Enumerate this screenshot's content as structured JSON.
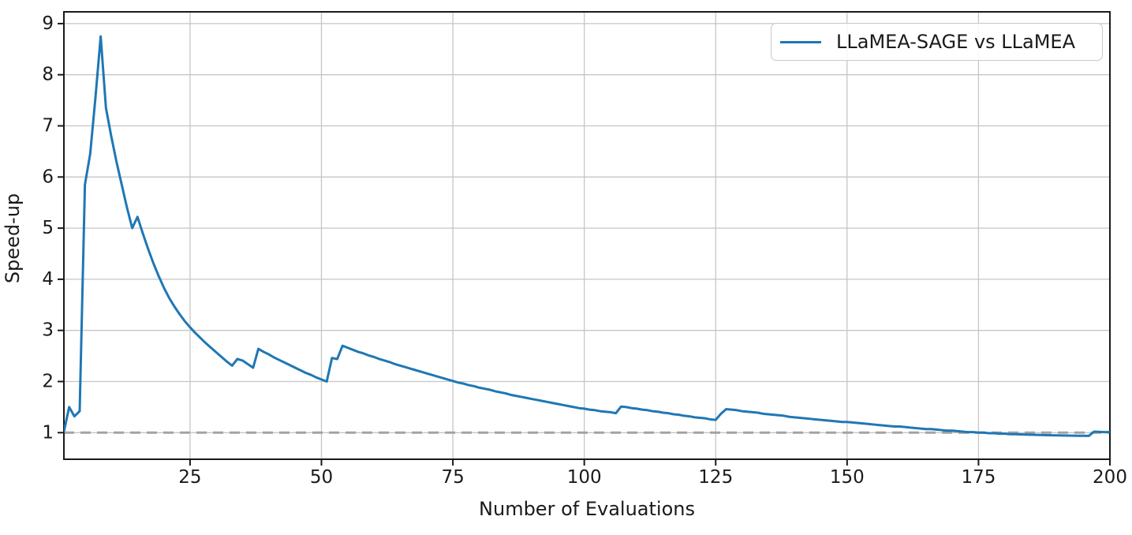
{
  "colors": {
    "series_line": "#1f77b4",
    "reference_line": "#a3a3a3",
    "grid": "#c6c6c6",
    "spine": "#1a1a1a",
    "text": "#1a1a1a",
    "legend_border": "#c9c9c9"
  },
  "chart_data": {
    "type": "line",
    "title": "",
    "xlabel": "Number of Evaluations",
    "ylabel": "Speed-up",
    "xlim": [
      1,
      200
    ],
    "ylim": [
      0.48,
      9.23
    ],
    "x_ticks": [
      25,
      50,
      75,
      100,
      125,
      150,
      175,
      200
    ],
    "y_ticks": [
      1,
      2,
      3,
      4,
      5,
      6,
      7,
      8,
      9
    ],
    "grid": true,
    "legend_position": "upper right",
    "reference_line": {
      "y": 1.0,
      "style": "dashed",
      "color": "#a3a3a3"
    },
    "series": [
      {
        "name": "LLaMEA-SAGE vs LLaMEA",
        "color": "#1f77b4",
        "x_start": 1,
        "x_step": 1,
        "values": [
          1.02,
          1.5,
          1.32,
          1.42,
          5.85,
          6.45,
          7.55,
          8.75,
          7.35,
          6.8,
          6.3,
          5.85,
          5.4,
          5.0,
          5.22,
          4.9,
          4.6,
          4.32,
          4.07,
          3.84,
          3.64,
          3.47,
          3.32,
          3.18,
          3.06,
          2.95,
          2.85,
          2.75,
          2.66,
          2.57,
          2.48,
          2.39,
          2.31,
          2.44,
          2.41,
          2.34,
          2.27,
          2.64,
          2.58,
          2.53,
          2.47,
          2.42,
          2.37,
          2.32,
          2.27,
          2.22,
          2.17,
          2.13,
          2.08,
          2.04,
          2.0,
          2.46,
          2.44,
          2.7,
          2.66,
          2.62,
          2.58,
          2.55,
          2.51,
          2.48,
          2.44,
          2.41,
          2.38,
          2.34,
          2.31,
          2.28,
          2.25,
          2.22,
          2.19,
          2.16,
          2.13,
          2.1,
          2.07,
          2.04,
          2.01,
          1.98,
          1.96,
          1.93,
          1.91,
          1.88,
          1.86,
          1.84,
          1.81,
          1.79,
          1.77,
          1.74,
          1.72,
          1.7,
          1.68,
          1.66,
          1.64,
          1.62,
          1.6,
          1.58,
          1.56,
          1.54,
          1.52,
          1.5,
          1.48,
          1.47,
          1.45,
          1.44,
          1.42,
          1.41,
          1.4,
          1.38,
          1.51,
          1.5,
          1.48,
          1.47,
          1.45,
          1.44,
          1.42,
          1.41,
          1.39,
          1.38,
          1.36,
          1.35,
          1.33,
          1.32,
          1.3,
          1.29,
          1.28,
          1.26,
          1.25,
          1.37,
          1.46,
          1.45,
          1.44,
          1.42,
          1.41,
          1.4,
          1.39,
          1.37,
          1.36,
          1.35,
          1.34,
          1.33,
          1.31,
          1.3,
          1.29,
          1.28,
          1.27,
          1.26,
          1.25,
          1.24,
          1.23,
          1.22,
          1.21,
          1.21,
          1.2,
          1.19,
          1.18,
          1.17,
          1.16,
          1.15,
          1.14,
          1.13,
          1.12,
          1.12,
          1.11,
          1.1,
          1.09,
          1.08,
          1.07,
          1.07,
          1.06,
          1.05,
          1.04,
          1.04,
          1.03,
          1.02,
          1.01,
          1.01,
          1.0,
          1.0,
          0.99,
          0.99,
          0.98,
          0.98,
          0.97,
          0.97,
          0.966,
          0.963,
          0.96,
          0.957,
          0.954,
          0.951,
          0.948,
          0.946,
          0.944,
          0.942,
          0.941,
          0.94,
          0.939,
          0.938,
          1.02,
          1.015,
          1.01,
          1.01
        ]
      }
    ]
  }
}
